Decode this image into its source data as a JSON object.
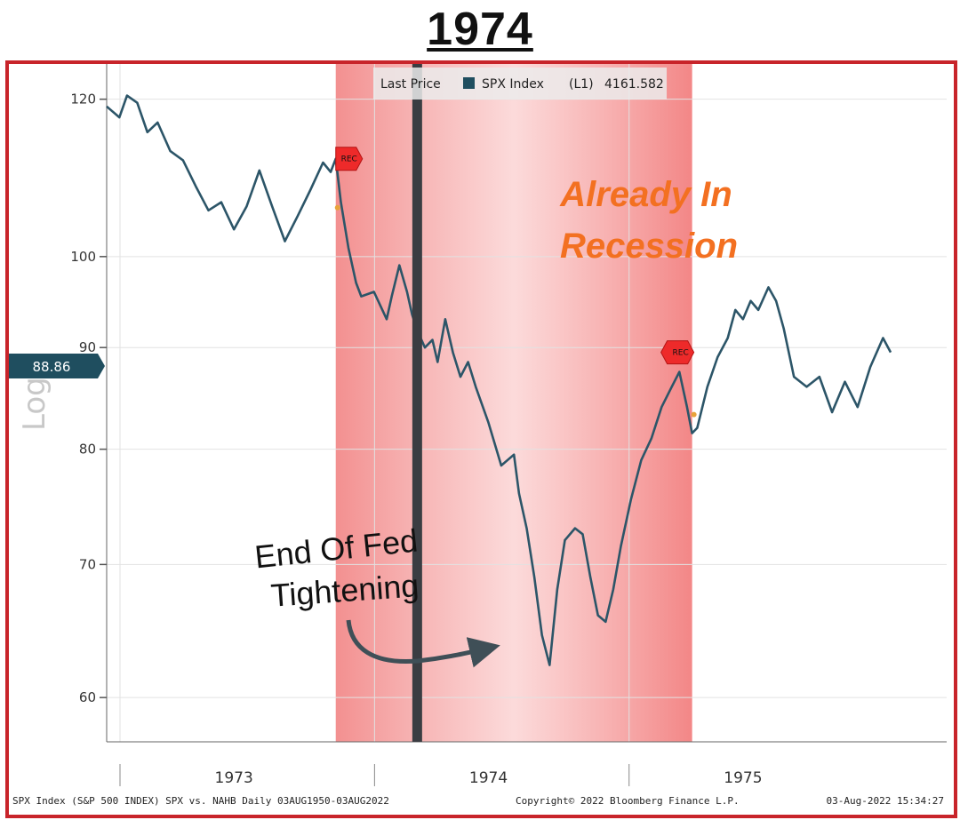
{
  "chart_data": {
    "type": "line",
    "title": "1974",
    "ylabel": "Log",
    "y_scale": "log",
    "ylim": [
      57,
      125
    ],
    "xlim": [
      1972.5,
      1975.8
    ],
    "y_ticks": [
      60,
      70,
      80,
      90,
      100,
      120
    ],
    "x_tick_labels": [
      {
        "x": 1973,
        "label": "1973"
      },
      {
        "x": 1974,
        "label": "1974"
      },
      {
        "x": 1975,
        "label": "1975"
      }
    ],
    "x_year_dividers": [
      1972.5,
      1973.5,
      1974.5
    ],
    "legend": {
      "label": "Last Price",
      "series_name": "SPX Index",
      "series_code": "(L1)",
      "value": "4161.582",
      "swatch_color": "#1f4e5f"
    },
    "last_price_tag": {
      "value": 88.86,
      "label": "88.86"
    },
    "recession_shading": {
      "start": 1973.4,
      "end": 1974.8,
      "color": "#f28a8a"
    },
    "recession_markers": [
      {
        "x": 1973.4,
        "y": 112,
        "label": "REC"
      },
      {
        "x": 1974.8,
        "y": 89.5,
        "label": "REC"
      }
    ],
    "fed_tightening_end": {
      "x": 1973.72
    },
    "annotations": {
      "already_in_recession": [
        "Already In",
        "Recession"
      ],
      "end_of_fed_tightening": [
        "End Of Fed",
        "Tightening"
      ]
    },
    "series": [
      {
        "name": "SPX Index",
        "color": "#2c5568",
        "points": [
          [
            1972.5,
            119.0
          ],
          [
            1972.55,
            117.5
          ],
          [
            1972.58,
            120.5
          ],
          [
            1972.62,
            119.5
          ],
          [
            1972.66,
            115.5
          ],
          [
            1972.7,
            116.8
          ],
          [
            1972.75,
            113.0
          ],
          [
            1972.8,
            111.8
          ],
          [
            1972.85,
            108.5
          ],
          [
            1972.9,
            105.5
          ],
          [
            1972.95,
            106.5
          ],
          [
            1973.0,
            103.2
          ],
          [
            1973.05,
            106.0
          ],
          [
            1973.1,
            110.5
          ],
          [
            1973.15,
            106.0
          ],
          [
            1973.2,
            101.8
          ],
          [
            1973.25,
            104.8
          ],
          [
            1973.3,
            108.0
          ],
          [
            1973.35,
            111.5
          ],
          [
            1973.38,
            110.3
          ],
          [
            1973.4,
            112.0
          ],
          [
            1973.42,
            106.5
          ],
          [
            1973.45,
            101.0
          ],
          [
            1973.48,
            97.0
          ],
          [
            1973.5,
            95.5
          ],
          [
            1973.55,
            96.0
          ],
          [
            1973.6,
            93.0
          ],
          [
            1973.62,
            95.5
          ],
          [
            1973.65,
            99.0
          ],
          [
            1973.68,
            96.0
          ],
          [
            1973.7,
            93.5
          ],
          [
            1973.72,
            91.8
          ],
          [
            1973.75,
            90.0
          ],
          [
            1973.78,
            90.8
          ],
          [
            1973.8,
            88.5
          ],
          [
            1973.83,
            93.0
          ],
          [
            1973.86,
            89.5
          ],
          [
            1973.89,
            87.0
          ],
          [
            1973.92,
            88.5
          ],
          [
            1973.95,
            86.0
          ],
          [
            1974.0,
            82.5
          ],
          [
            1974.05,
            78.5
          ],
          [
            1974.1,
            79.5
          ],
          [
            1974.12,
            76.0
          ],
          [
            1974.15,
            73.0
          ],
          [
            1974.18,
            69.0
          ],
          [
            1974.21,
            64.5
          ],
          [
            1974.24,
            62.3
          ],
          [
            1974.27,
            68.0
          ],
          [
            1974.3,
            72.0
          ],
          [
            1974.34,
            73.0
          ],
          [
            1974.37,
            72.5
          ],
          [
            1974.4,
            69.0
          ],
          [
            1974.43,
            66.0
          ],
          [
            1974.46,
            65.5
          ],
          [
            1974.49,
            68.0
          ],
          [
            1974.52,
            71.5
          ],
          [
            1974.56,
            75.5
          ],
          [
            1974.6,
            79.0
          ],
          [
            1974.64,
            81.0
          ],
          [
            1974.68,
            84.0
          ],
          [
            1974.72,
            86.0
          ],
          [
            1974.75,
            87.5
          ],
          [
            1974.78,
            84.0
          ],
          [
            1974.8,
            81.5
          ],
          [
            1974.82,
            82.0
          ],
          [
            1974.86,
            86.0
          ],
          [
            1974.9,
            89.0
          ],
          [
            1974.94,
            91.0
          ],
          [
            1974.97,
            94.0
          ],
          [
            1975.0,
            93.0
          ],
          [
            1975.03,
            95.0
          ],
          [
            1975.06,
            94.0
          ],
          [
            1975.1,
            96.5
          ],
          [
            1975.13,
            95.0
          ],
          [
            1975.16,
            92.0
          ],
          [
            1975.2,
            87.0
          ],
          [
            1975.25,
            86.0
          ],
          [
            1975.3,
            87.0
          ],
          [
            1975.35,
            83.5
          ],
          [
            1975.4,
            86.5
          ],
          [
            1975.45,
            84.0
          ],
          [
            1975.5,
            88.0
          ],
          [
            1975.55,
            91.0
          ],
          [
            1975.58,
            89.5
          ]
        ]
      }
    ]
  },
  "footer": {
    "left": "SPX Index (S&P 500 INDEX) SPX vs. NAHB  Daily 03AUG1950-03AUG2022",
    "center": "Copyright© 2022 Bloomberg Finance L.P.",
    "right": "03-Aug-2022 15:34:27"
  },
  "colors": {
    "frame": "#c8242a",
    "line": "#2c5568",
    "recession": "#f28a8a",
    "fed_line": "#3a3d42",
    "orange_text": "#f37021",
    "tag_bg": "#1f4e5f"
  }
}
